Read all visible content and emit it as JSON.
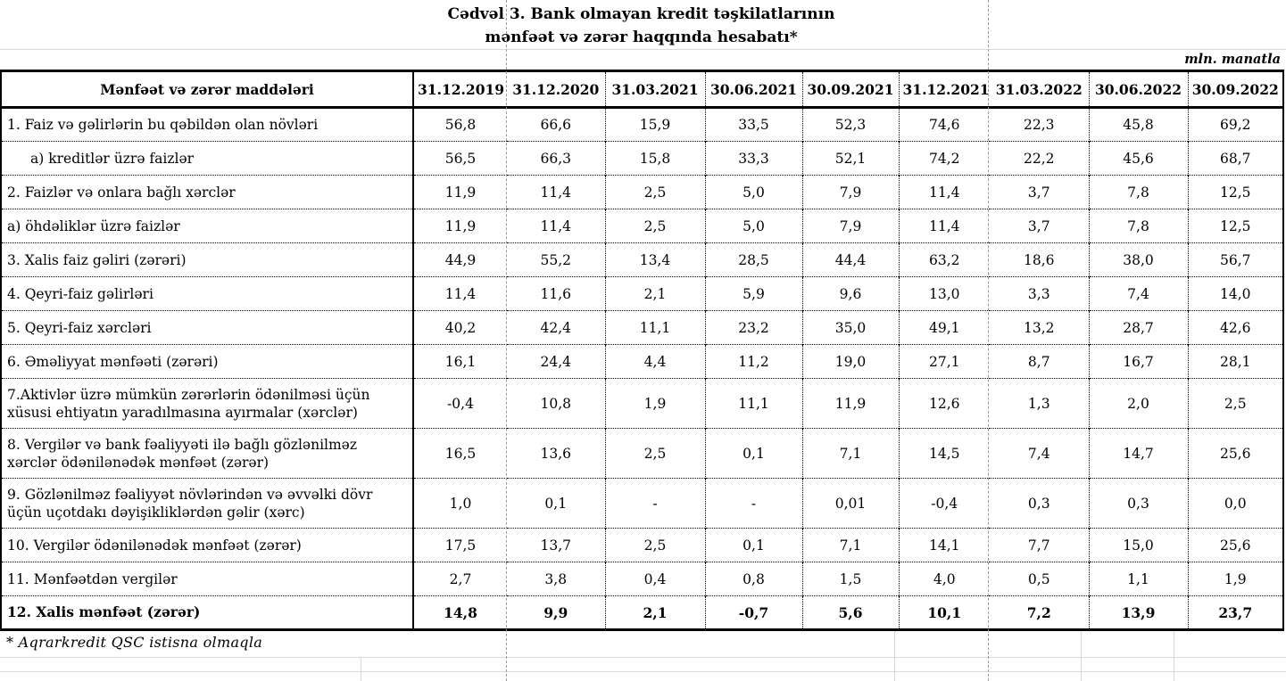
{
  "title": {
    "line1": "Cədvəl 3. Bank olmayan kredit təşkilatlarının",
    "line2": "mənfəət və zərər haqqında hesabatı*"
  },
  "unit_note": "mln. manatla",
  "table": {
    "label_header": "Mənfəət və zərər maddələri",
    "columns": [
      "31.12.2019",
      "31.12.2020",
      "31.03.2021",
      "30.06.2021",
      "30.09.2021",
      "31.12.2021",
      "31.03.2022",
      "30.06.2022",
      "30.09.2022"
    ],
    "rows": [
      {
        "label": "1. Faiz və gəlirlərin bu qəbildən olan növləri",
        "indent": false,
        "bold": false,
        "values": [
          "56,8",
          "66,6",
          "15,9",
          "33,5",
          "52,3",
          "74,6",
          "22,3",
          "45,8",
          "69,2"
        ]
      },
      {
        "label": "a) kreditlər üzrə faizlər",
        "indent": true,
        "bold": false,
        "values": [
          "56,5",
          "66,3",
          "15,8",
          "33,3",
          "52,1",
          "74,2",
          "22,2",
          "45,6",
          "68,7"
        ]
      },
      {
        "label": "2. Faizlər və onlara bağlı xərclər",
        "indent": false,
        "bold": false,
        "values": [
          "11,9",
          "11,4",
          "2,5",
          "5,0",
          "7,9",
          "11,4",
          "3,7",
          "7,8",
          "12,5"
        ]
      },
      {
        "label": "a) öhdəliklər üzrə faizlər",
        "indent": false,
        "bold": false,
        "values": [
          "11,9",
          "11,4",
          "2,5",
          "5,0",
          "7,9",
          "11,4",
          "3,7",
          "7,8",
          "12,5"
        ]
      },
      {
        "label": "3. Xalis faiz gəliri (zərəri)",
        "indent": false,
        "bold": false,
        "values": [
          "44,9",
          "55,2",
          "13,4",
          "28,5",
          "44,4",
          "63,2",
          "18,6",
          "38,0",
          "56,7"
        ]
      },
      {
        "label": "4. Qeyri-faiz gəlirləri",
        "indent": false,
        "bold": false,
        "values": [
          "11,4",
          "11,6",
          "2,1",
          "5,9",
          "9,6",
          "13,0",
          "3,3",
          "7,4",
          "14,0"
        ]
      },
      {
        "label": "5. Qeyri-faiz xərcləri",
        "indent": false,
        "bold": false,
        "values": [
          "40,2",
          "42,4",
          "11,1",
          "23,2",
          "35,0",
          "49,1",
          "13,2",
          "28,7",
          "42,6"
        ]
      },
      {
        "label": "6. Əməliyyat mənfəəti (zərəri)",
        "indent": false,
        "bold": false,
        "values": [
          "16,1",
          "24,4",
          "4,4",
          "11,2",
          "19,0",
          "27,1",
          "8,7",
          "16,7",
          "28,1"
        ]
      },
      {
        "label": "7.Aktivlər üzrə mümkün zərərlərin ödənilməsi üçün xüsusi ehtiyatın yaradılmasına ayırmalar (xərclər)",
        "indent": false,
        "bold": false,
        "values": [
          "-0,4",
          "10,8",
          "1,9",
          "11,1",
          "11,9",
          "12,6",
          "1,3",
          "2,0",
          "2,5"
        ]
      },
      {
        "label": "8. Vergilər və bank fəaliyyəti ilə bağlı gözlənilməz xərclər ödənilənədək mənfəət (zərər)",
        "indent": false,
        "bold": false,
        "values": [
          "16,5",
          "13,6",
          "2,5",
          "0,1",
          "7,1",
          "14,5",
          "7,4",
          "14,7",
          "25,6"
        ]
      },
      {
        "label": "9. Gözlənilməz fəaliyyət növlərindən və əvvəlki dövr üçün uçotdakı dəyişikliklərdən gəlir (xərc)",
        "indent": false,
        "bold": false,
        "values": [
          "1,0",
          "0,1",
          "-",
          "-",
          "0,01",
          "-0,4",
          "0,3",
          "0,3",
          "0,0"
        ]
      },
      {
        "label": "10. Vergilər ödənilənədək mənfəət (zərər)",
        "indent": false,
        "bold": false,
        "values": [
          "17,5",
          "13,7",
          "2,5",
          "0,1",
          "7,1",
          "14,1",
          "7,7",
          "15,0",
          "25,6"
        ]
      },
      {
        "label": "11. Mənfəətdən vergilər",
        "indent": false,
        "bold": false,
        "values": [
          "2,7",
          "3,8",
          "0,4",
          "0,8",
          "1,5",
          "4,0",
          "0,5",
          "1,1",
          "1,9"
        ]
      },
      {
        "label": "12. Xalis mənfəət (zərər)",
        "indent": false,
        "bold": true,
        "values": [
          "14,8",
          "9,9",
          "2,1",
          "-0,7",
          "5,6",
          "10,1",
          "7,2",
          "13,9",
          "23,7"
        ]
      }
    ]
  },
  "footnote": "* Aqrarkredit QSC istisna olmaqla"
}
